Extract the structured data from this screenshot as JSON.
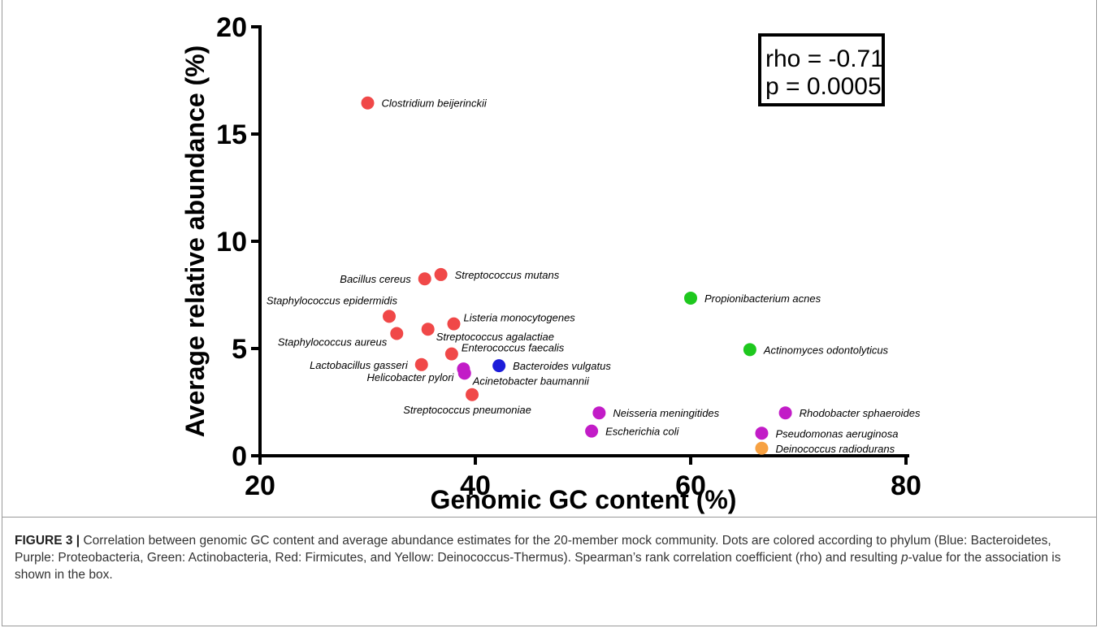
{
  "chart_data": {
    "type": "scatter",
    "xlabel": "Genomic GC content (%)",
    "ylabel": "Average relative abundance (%)",
    "xlim": [
      20,
      80
    ],
    "ylim": [
      0,
      20
    ],
    "xticks": [
      20,
      40,
      60,
      80
    ],
    "yticks": [
      0,
      5,
      10,
      15,
      20
    ],
    "grid": false,
    "colors": {
      "Firmicutes": "#f04848",
      "Proteobacteria": "#c21cc7",
      "Bacteroidetes": "#1c1cd9",
      "Actinobacteria": "#1ec81e",
      "Deinococcus-Thermus": "#f7a142"
    },
    "points": [
      {
        "label": "Clostridium beijerinckii",
        "x": 30.0,
        "y": 16.45,
        "phylum": "Firmicutes",
        "side": "right"
      },
      {
        "label": "Streptococcus mutans",
        "x": 36.8,
        "y": 8.45,
        "phylum": "Firmicutes",
        "side": "right"
      },
      {
        "label": "Bacillus cereus",
        "x": 35.3,
        "y": 8.25,
        "phylum": "Firmicutes",
        "side": "left"
      },
      {
        "label": "Propionibacterium acnes",
        "x": 60.0,
        "y": 7.35,
        "phylum": "Actinobacteria",
        "side": "right"
      },
      {
        "label": "Staphylococcus epidermidis",
        "x": 32.0,
        "y": 6.5,
        "phylum": "Firmicutes",
        "side": "left-above"
      },
      {
        "label": "Listeria monocytogenes",
        "x": 38.0,
        "y": 6.15,
        "phylum": "Firmicutes",
        "side": "right-above"
      },
      {
        "label": "Streptococcus agalactiae",
        "x": 35.6,
        "y": 5.9,
        "phylum": "Firmicutes",
        "side": "right-below"
      },
      {
        "label": "Staphylococcus aureus",
        "x": 32.7,
        "y": 5.7,
        "phylum": "Firmicutes",
        "side": "left-below"
      },
      {
        "label": "Actinomyces odontolyticus",
        "x": 65.5,
        "y": 4.95,
        "phylum": "Actinobacteria",
        "side": "right"
      },
      {
        "label": "Enterococcus faecalis",
        "x": 37.8,
        "y": 4.75,
        "phylum": "Firmicutes",
        "side": "right-above"
      },
      {
        "label": "Lactobacillus gasseri",
        "x": 35.0,
        "y": 4.25,
        "phylum": "Firmicutes",
        "side": "left"
      },
      {
        "label": "Bacteroides vulgatus",
        "x": 42.2,
        "y": 4.2,
        "phylum": "Bacteroidetes",
        "side": "right"
      },
      {
        "label": "Helicobacter pylori",
        "x": 38.9,
        "y": 4.05,
        "phylum": "Proteobacteria",
        "side": "left-below"
      },
      {
        "label": "Acinetobacter baumannii",
        "x": 39.0,
        "y": 3.85,
        "phylum": "Proteobacteria",
        "side": "right-below"
      },
      {
        "label": "Streptococcus pneumoniae",
        "x": 39.7,
        "y": 2.85,
        "phylum": "Firmicutes",
        "side": "below"
      },
      {
        "label": "Neisseria meningitides",
        "x": 51.5,
        "y": 2.0,
        "phylum": "Proteobacteria",
        "side": "right"
      },
      {
        "label": "Rhodobacter sphaeroides",
        "x": 68.8,
        "y": 2.0,
        "phylum": "Proteobacteria",
        "side": "right"
      },
      {
        "label": "Escherichia coli",
        "x": 50.8,
        "y": 1.15,
        "phylum": "Proteobacteria",
        "side": "right"
      },
      {
        "label": "Pseudomonas aeruginosa",
        "x": 66.6,
        "y": 1.05,
        "phylum": "Proteobacteria",
        "side": "right"
      },
      {
        "label": "Deinococcus radiodurans",
        "x": 66.6,
        "y": 0.35,
        "phylum": "Deinococcus-Thermus",
        "side": "right"
      }
    ],
    "annotation": {
      "rho_text": "rho = -0.71",
      "p_text": "p = 0.0005",
      "placement": "top-right"
    }
  },
  "caption": {
    "label": "FIGURE 3 |",
    "text_before_p": " Correlation between genomic GC content and average abundance estimates for the 20-member mock community. Dots are colored according to phylum (Blue: Bacteroidetes, Purple: Proteobacteria, Green: Actinobacteria, Red: Firmicutes, and Yellow: Deinococcus-Thermus). Spearman’s rank correlation coefficient (rho) and resulting ",
    "p_italic": "p",
    "text_after_p": "-value for the association is shown in the box."
  }
}
